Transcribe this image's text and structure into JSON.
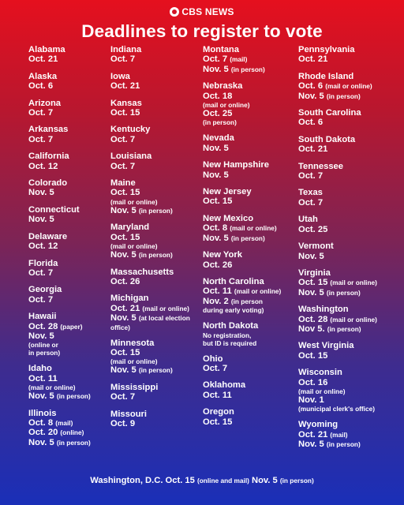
{
  "brand": "CBS NEWS",
  "title": "Deadlines to register to vote",
  "columns": [
    [
      {
        "state": "Alabama",
        "lines": [
          "Oct. 21"
        ]
      },
      {
        "state": "Alaska",
        "lines": [
          "Oct. 6"
        ]
      },
      {
        "state": "Arizona",
        "lines": [
          "Oct. 7"
        ]
      },
      {
        "state": "Arkansas",
        "lines": [
          "Oct. 7"
        ]
      },
      {
        "state": "California",
        "lines": [
          "Oct. 12"
        ]
      },
      {
        "state": "Colorado",
        "lines": [
          "Nov. 5"
        ]
      },
      {
        "state": "Connecticut",
        "lines": [
          "Nov. 5"
        ]
      },
      {
        "state": "Delaware",
        "lines": [
          "Oct. 12"
        ]
      },
      {
        "state": "Florida",
        "lines": [
          "Oct. 7"
        ]
      },
      {
        "state": "Georgia",
        "lines": [
          "Oct. 7"
        ]
      },
      {
        "state": "Hawaii",
        "lines": [
          "Oct. 28 (paper)",
          "Nov. 5"
        ],
        "notes": [
          "(online or",
          "in person)"
        ]
      },
      {
        "state": "Idaho",
        "lines": [
          "Oct. 11"
        ],
        "notes": [
          "(mail or online)"
        ],
        "after": {
          "text": "Nov. 5",
          "note": "(in person)"
        }
      },
      {
        "state": "Illinois",
        "lines": [
          "Oct. 8 (mail)",
          "Oct. 20 (online)",
          "Nov. 5 (in person)"
        ]
      }
    ],
    [
      {
        "state": "Indiana",
        "lines": [
          "Oct. 7"
        ]
      },
      {
        "state": "Iowa",
        "lines": [
          "Oct. 21"
        ]
      },
      {
        "state": "Kansas",
        "lines": [
          "Oct. 15"
        ]
      },
      {
        "state": "Kentucky",
        "lines": [
          "Oct. 7"
        ]
      },
      {
        "state": "Louisiana",
        "lines": [
          "Oct. 7"
        ]
      },
      {
        "state": "Maine",
        "lines": [
          "Oct. 15"
        ],
        "notes": [
          "(mail or online)"
        ],
        "after": {
          "text": "Nov. 5",
          "note": "(in person)"
        }
      },
      {
        "state": "Maryland",
        "lines": [
          "Oct. 15"
        ],
        "notes": [
          "(mail or online)"
        ],
        "after": {
          "text": "Nov. 5",
          "note": "(in person)"
        }
      },
      {
        "state": "Massachusetts",
        "lines": [
          "Oct. 26"
        ]
      },
      {
        "state": "Michigan",
        "lines": [
          "Oct. 21 (mail or online)",
          "Nov. 5 (at local election"
        ],
        "notes": [
          "office)"
        ]
      },
      {
        "state": "Minnesota",
        "lines": [
          "Oct. 15"
        ],
        "notes": [
          "(mail or online)"
        ],
        "after": {
          "text": "Nov. 5",
          "note": "(in person)"
        }
      },
      {
        "state": "Mississippi",
        "lines": [
          "Oct. 7"
        ]
      },
      {
        "state": "Missouri",
        "lines": [
          "Oct. 9"
        ]
      }
    ],
    [
      {
        "state": "Montana",
        "lines": [
          "Oct. 7 (mail)",
          "Nov. 5 (in person)"
        ]
      },
      {
        "state": "Nebraska",
        "lines": [
          "Oct. 18"
        ],
        "notes": [
          "(mail or online)"
        ],
        "after": {
          "text": "Oct. 25",
          "note": ""
        },
        "after_notes": [
          "(in person)"
        ]
      },
      {
        "state": "Nevada",
        "lines": [
          "Nov. 5"
        ]
      },
      {
        "state": "New Hampshire",
        "lines": [
          "Nov. 5"
        ]
      },
      {
        "state": "New Jersey",
        "lines": [
          "Oct. 15"
        ]
      },
      {
        "state": "New Mexico",
        "lines": [
          "Oct. 8 (mail or online)",
          "Nov. 5 (in person)"
        ]
      },
      {
        "state": "New York",
        "lines": [
          "Oct. 26"
        ]
      },
      {
        "state": "North Carolina",
        "lines": [
          "Oct. 11 (mail or online)",
          "Nov. 2 (in person"
        ],
        "notes": [
          "during early voting)"
        ]
      },
      {
        "state": "North Dakota",
        "lines": [],
        "notes": [
          "No registration,",
          "but ID is required"
        ]
      },
      {
        "state": "Ohio",
        "lines": [
          "Oct. 7"
        ]
      },
      {
        "state": "Oklahoma",
        "lines": [
          "Oct. 11"
        ]
      },
      {
        "state": "Oregon",
        "lines": [
          "Oct.  15"
        ]
      }
    ],
    [
      {
        "state": "Pennsylvania",
        "lines": [
          "Oct. 21"
        ]
      },
      {
        "state": "Rhode Island",
        "lines": [
          "Oct. 6 (mail or online)",
          "Nov. 5 (in person)"
        ]
      },
      {
        "state": "South Carolina",
        "lines": [
          "Oct. 6"
        ]
      },
      {
        "state": "South Dakota",
        "lines": [
          "Oct. 21"
        ]
      },
      {
        "state": "Tennessee",
        "lines": [
          "Oct.  7"
        ]
      },
      {
        "state": "Texas",
        "lines": [
          "Oct. 7"
        ]
      },
      {
        "state": "Utah",
        "lines": [
          "Oct. 25"
        ]
      },
      {
        "state": "Vermont",
        "lines": [
          "Nov. 5"
        ]
      },
      {
        "state": "Virginia",
        "lines": [
          "Oct. 15 (mail or online)",
          "Nov. 5 (in person)"
        ]
      },
      {
        "state": "Washington",
        "lines": [
          "Oct. 28 (mail or online)",
          "Nov 5. (in person)"
        ]
      },
      {
        "state": "West Virginia",
        "lines": [
          "Oct. 15"
        ]
      },
      {
        "state": "Wisconsin",
        "lines": [
          "Oct. 16"
        ],
        "notes": [
          "(mail or online)"
        ],
        "after": {
          "text": "Nov. 1",
          "note": ""
        },
        "after_notes": [
          "(municipal clerk's office)"
        ]
      },
      {
        "state": "Wyoming",
        "lines": [
          "Oct. 21 (mail)",
          "Nov. 5 (in person)"
        ]
      }
    ]
  ],
  "footer": {
    "prefix": "Washington, D.C. Oct. 15",
    "note1": "(online and mail)",
    "middle": "Nov. 5",
    "note2": "(in person)"
  }
}
